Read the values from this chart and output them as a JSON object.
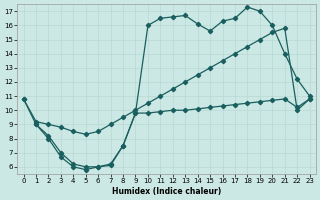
{
  "xlabel": "Humidex (Indice chaleur)",
  "bg_color": "#cce8e4",
  "grid_color": "#b8d8d4",
  "line_color": "#1a5f5f",
  "markersize": 2.2,
  "linewidth": 0.9,
  "xlim": [
    -0.5,
    23.5
  ],
  "ylim": [
    5.5,
    17.5
  ],
  "xticks": [
    0,
    1,
    2,
    3,
    4,
    5,
    6,
    7,
    8,
    9,
    10,
    11,
    12,
    13,
    14,
    15,
    16,
    17,
    18,
    19,
    20,
    21,
    22,
    23
  ],
  "yticks": [
    6,
    7,
    8,
    9,
    10,
    11,
    12,
    13,
    14,
    15,
    16,
    17
  ],
  "curve1_x": [
    0,
    1,
    2,
    3,
    4,
    5,
    6,
    7,
    8,
    9,
    10,
    11,
    12,
    13,
    14,
    15,
    16,
    17,
    18,
    19,
    20,
    21,
    22,
    23
  ],
  "curve1_y": [
    10.8,
    9.0,
    8.0,
    6.7,
    6.0,
    5.8,
    6.0,
    6.1,
    7.5,
    9.8,
    16.0,
    16.5,
    16.6,
    16.7,
    16.1,
    15.6,
    16.3,
    16.5,
    17.3,
    17.0,
    16.0,
    14.0,
    12.2,
    11.0
  ],
  "curve2_x": [
    0,
    1,
    2,
    3,
    4,
    5,
    6,
    7,
    8,
    9,
    10,
    11,
    12,
    13,
    14,
    15,
    16,
    17,
    18,
    19,
    20,
    21,
    22,
    23
  ],
  "curve2_y": [
    10.8,
    9.2,
    9.0,
    8.8,
    8.5,
    8.3,
    8.5,
    9.0,
    9.5,
    10.0,
    10.5,
    11.0,
    11.5,
    12.0,
    12.5,
    13.0,
    13.5,
    14.0,
    14.5,
    15.0,
    15.5,
    15.8,
    10.0,
    10.8
  ],
  "curve3_x": [
    1,
    2,
    3,
    4,
    5,
    6,
    7,
    8,
    9,
    10,
    11,
    12,
    13,
    14,
    15,
    16,
    17,
    18,
    19,
    20,
    21,
    22,
    23
  ],
  "curve3_y": [
    9.0,
    8.2,
    7.0,
    6.2,
    6.0,
    6.0,
    6.2,
    7.5,
    9.8,
    9.8,
    9.9,
    10.0,
    10.0,
    10.1,
    10.2,
    10.3,
    10.4,
    10.5,
    10.6,
    10.7,
    10.8,
    10.2,
    10.8
  ]
}
